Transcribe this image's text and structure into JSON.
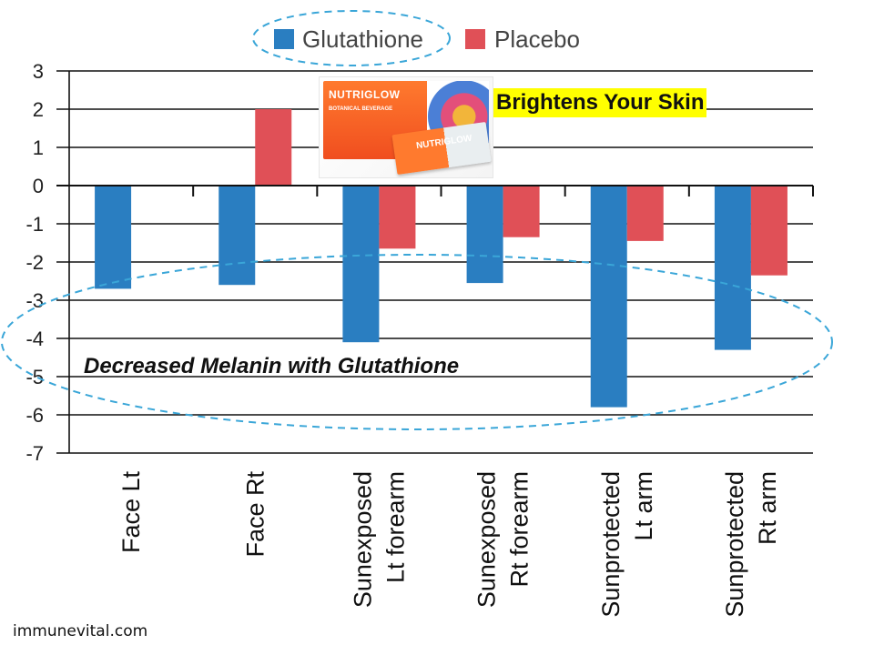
{
  "chart_data": {
    "type": "bar",
    "title": "",
    "xlabel": "",
    "ylabel": "",
    "ylim": [
      -7,
      3
    ],
    "yticks": [
      3,
      2,
      1,
      0,
      -1,
      -2,
      -3,
      -4,
      -5,
      -6,
      -7
    ],
    "grid": true,
    "legend_position": "top-center",
    "categories": [
      [
        "Face Lt"
      ],
      [
        "Face Rt"
      ],
      [
        "Sunexposed",
        "Lt forearm"
      ],
      [
        "Sunexposed",
        "Rt forearm"
      ],
      [
        "Sunprotected",
        "Lt arm"
      ],
      [
        "Sunprotected",
        "Rt arm"
      ]
    ],
    "series": [
      {
        "name": "Glutathione",
        "color": "#2a7ec1",
        "values": [
          -2.7,
          -2.6,
          -4.1,
          -2.55,
          -5.8,
          -4.3
        ]
      },
      {
        "name": "Placebo",
        "color": "#e05057",
        "values": [
          0,
          2.0,
          -1.65,
          -1.35,
          -1.45,
          -2.35
        ]
      }
    ],
    "annotations": {
      "melanin_note": "Decreased Melanin with Glutathione"
    },
    "ellipse_color": "#3aa6d8"
  },
  "promo": {
    "label": "Brightens Your Skin",
    "brand": "NUTRIGLOW",
    "box_subtitle": "BOTANICAL BEVERAGE",
    "stick_brand": "NUTRIGLOW"
  },
  "watermark": "immunevital.com"
}
